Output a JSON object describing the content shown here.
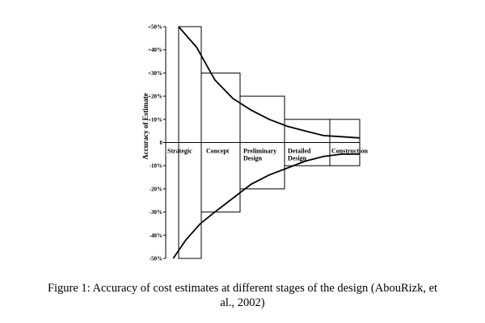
{
  "chart_data": {
    "type": "line",
    "ylabel": "Accuracy of Estimate",
    "ylim": [
      -50,
      50
    ],
    "y_ticks": [
      "+50%",
      "+40%",
      "+30%",
      "+20%",
      "+10%",
      "0",
      "-10%",
      "-20%",
      "-30%",
      "-40%",
      "-50%"
    ],
    "categories": [
      "Strategic",
      "Concept",
      "Preliminary Design",
      "Detailed Design",
      "Construction"
    ],
    "category_labels": [
      [
        "Strategic"
      ],
      [
        "Concept"
      ],
      [
        "Preliminary",
        "Design"
      ],
      [
        "Detailed",
        "Design"
      ],
      [
        "Construction"
      ]
    ],
    "ranges": [
      {
        "stage": "Strategic",
        "upper": 50,
        "lower": -50
      },
      {
        "stage": "Concept",
        "upper": 30,
        "lower": -30
      },
      {
        "stage": "Preliminary Design",
        "upper": 20,
        "lower": -20
      },
      {
        "stage": "Detailed Design",
        "upper": 10,
        "lower": -10
      },
      {
        "stage": "Construction",
        "upper": 10,
        "lower": -10
      }
    ],
    "curves": {
      "upper": [
        [
          0.0,
          50
        ],
        [
          0.5,
          41
        ],
        [
          1.0,
          27
        ],
        [
          1.5,
          19
        ],
        [
          2.0,
          14
        ],
        [
          2.5,
          10
        ],
        [
          3.0,
          7
        ],
        [
          3.5,
          5
        ],
        [
          4.0,
          3
        ],
        [
          4.5,
          2.5
        ],
        [
          5.0,
          2
        ]
      ],
      "lower": [
        [
          -0.15,
          -50
        ],
        [
          0.2,
          -42
        ],
        [
          0.6,
          -35
        ],
        [
          1.0,
          -30
        ],
        [
          1.5,
          -24
        ],
        [
          2.0,
          -18
        ],
        [
          2.5,
          -14
        ],
        [
          3.0,
          -11
        ],
        [
          3.5,
          -8
        ],
        [
          4.0,
          -6
        ],
        [
          4.5,
          -5
        ],
        [
          5.0,
          -5
        ]
      ]
    }
  },
  "caption": {
    "line1": "Figure 1: Accuracy of cost estimates at different stages of the design (AbouRizk, et",
    "line2": "al., 2002)"
  }
}
